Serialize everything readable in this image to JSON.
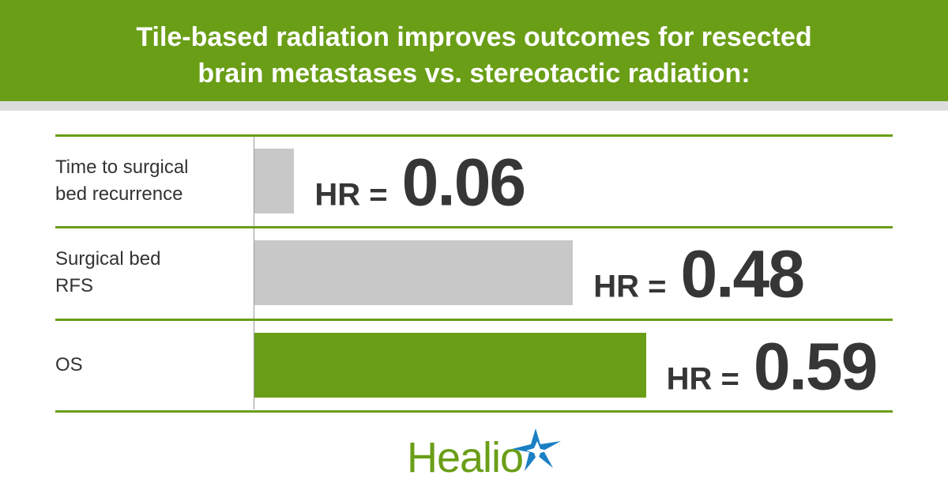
{
  "chart_data": {
    "type": "bar",
    "orientation": "horizontal",
    "title": "Tile-based radiation improves outcomes for resected brain metastases vs. stereotactic radiation:",
    "categories": [
      "Time to surgical\nbed recurrence",
      "Surgical bed\nRFS",
      "OS"
    ],
    "values": [
      0.06,
      0.48,
      0.59
    ],
    "colors": [
      "#c8c8c8",
      "#c8c8c8",
      "#6a9e17"
    ],
    "value_label_prefix": "HR ="
  },
  "brand": "Healio"
}
